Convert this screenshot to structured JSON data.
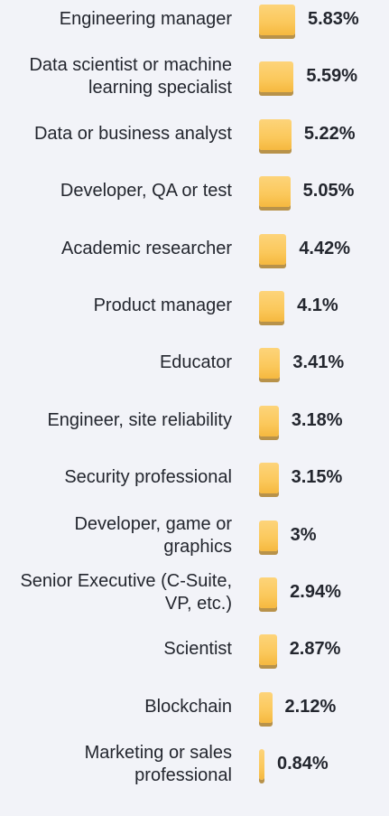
{
  "colors": {
    "bar": "#fbc85b",
    "bar_shadow": "#b8924a",
    "text": "#23262e",
    "background": "#f2f3f8"
  },
  "chart_data": {
    "type": "bar",
    "orientation": "horizontal",
    "categories": [
      "Engineering manager",
      "Data scientist or machine learning specialist",
      "Data or business analyst",
      "Developer, QA or test",
      "Academic researcher",
      "Product manager",
      "Educator",
      "Engineer, site reliability",
      "Security professional",
      "Developer, game or graphics",
      "Senior Executive (C-Suite, VP, etc.)",
      "Scientist",
      "Blockchain",
      "Marketing or sales professional"
    ],
    "values": [
      5.83,
      5.59,
      5.22,
      5.05,
      4.42,
      4.1,
      3.41,
      3.18,
      3.15,
      3,
      2.94,
      2.87,
      2.12,
      0.84
    ],
    "value_labels": [
      "5.83%",
      "5.59%",
      "5.22%",
      "5.05%",
      "4.42%",
      "4.1%",
      "3.41%",
      "3.18%",
      "3.15%",
      "3%",
      "2.94%",
      "2.87%",
      "2.12%",
      "0.84%"
    ],
    "grid": false,
    "legend": "none"
  }
}
